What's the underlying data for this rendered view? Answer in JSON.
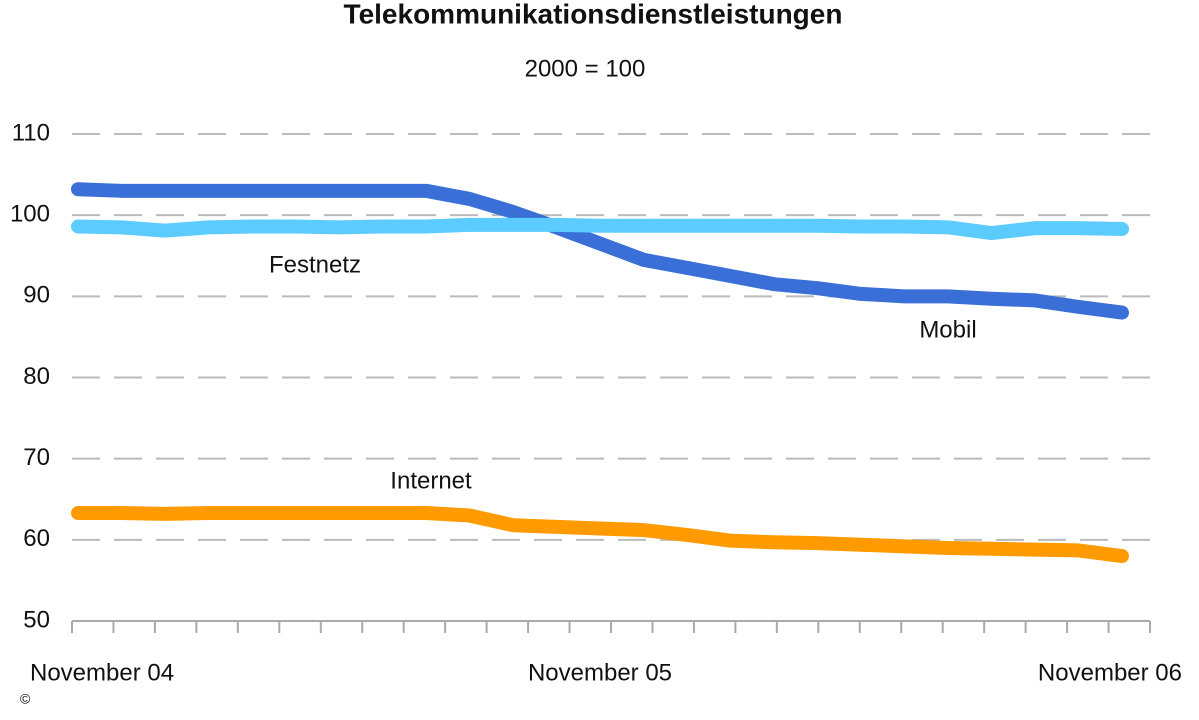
{
  "chart_data": {
    "type": "line",
    "title": "Telekommunikationsdienstleistungen",
    "subtitle": "2000 = 100",
    "copyright": "©",
    "categories": [
      "November 04",
      null,
      null,
      null,
      null,
      null,
      null,
      null,
      null,
      null,
      null,
      null,
      "November 05",
      null,
      null,
      null,
      null,
      null,
      null,
      null,
      null,
      null,
      null,
      null,
      "November 06"
    ],
    "series": [
      {
        "name": "Mobil",
        "color": "#3a6fd8",
        "values": [
          103.2,
          103,
          103,
          103,
          103,
          103,
          103,
          103,
          103,
          102,
          100.4,
          98.5,
          96.5,
          94.5,
          93.5,
          92.5,
          91.5,
          91,
          90.3,
          90,
          90,
          89.7,
          89.5,
          88.7,
          88
        ]
      },
      {
        "name": "Festnetz",
        "color": "#5ccbff",
        "values": [
          98.6,
          98.5,
          98.1,
          98.5,
          98.6,
          98.6,
          98.5,
          98.6,
          98.6,
          98.8,
          98.8,
          98.8,
          98.7,
          98.7,
          98.7,
          98.7,
          98.7,
          98.7,
          98.6,
          98.6,
          98.5,
          97.8,
          98.4,
          98.4,
          98.3
        ]
      },
      {
        "name": "Internet",
        "color": "#ff9a00",
        "values": [
          63.3,
          63.3,
          63.2,
          63.3,
          63.3,
          63.3,
          63.3,
          63.3,
          63.3,
          63,
          61.8,
          61.6,
          61.4,
          61.2,
          60.6,
          59.9,
          59.7,
          59.6,
          59.4,
          59.2,
          59,
          58.9,
          58.8,
          58.7,
          58
        ]
      }
    ],
    "ylim": [
      50,
      110
    ],
    "yticks": [
      50,
      60,
      70,
      80,
      90,
      100,
      110
    ],
    "grid": true
  }
}
